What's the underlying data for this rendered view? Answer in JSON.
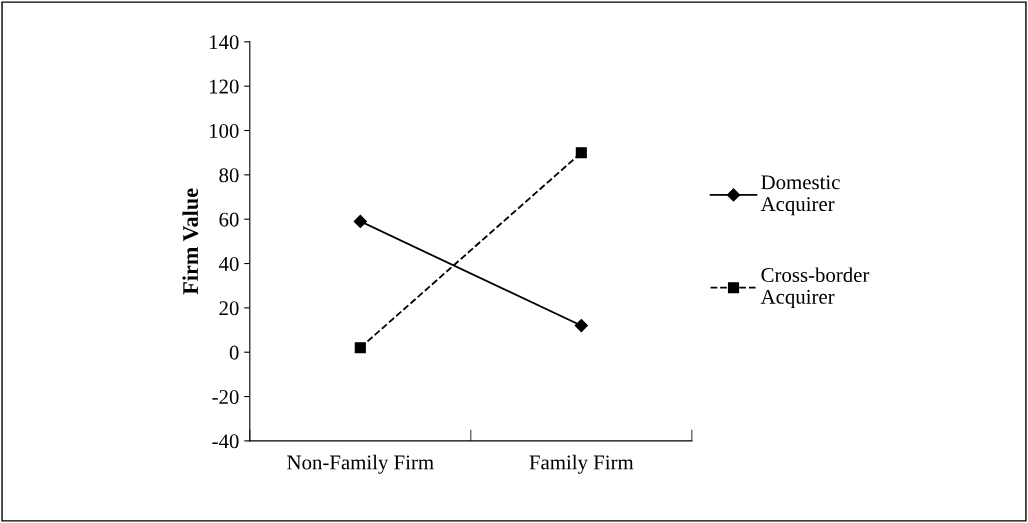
{
  "chart_data": {
    "type": "line",
    "ylabel": "Firm Value",
    "categories": [
      "Non-Family Firm",
      "Family Firm"
    ],
    "series": [
      {
        "name": "Domestic\nAcquirer",
        "color": "#000000",
        "values": [
          59,
          12
        ],
        "marker": "diamond",
        "line_style": "solid"
      },
      {
        "name": "Cross-border\nAcquirer",
        "color": "#000000",
        "values": [
          2,
          90
        ],
        "marker": "square",
        "line_style": "dashed"
      }
    ],
    "ylim": [
      -40,
      140
    ],
    "yticks": [
      -40,
      -20,
      0,
      20,
      40,
      60,
      80,
      100,
      120,
      140
    ],
    "grid": false,
    "legend": "right"
  }
}
